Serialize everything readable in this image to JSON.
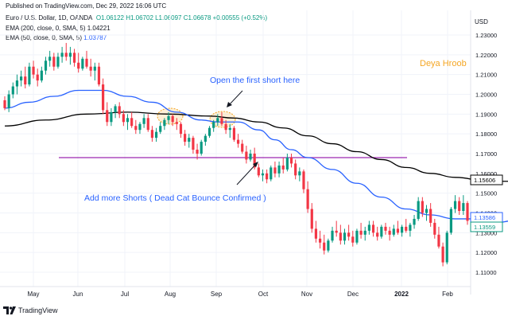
{
  "header": {
    "published": "Published on TradingView.com, Dec 29, 2022 16:06 UTC",
    "symbol": "Euro / U.S. Dollar, 1D, OANDA",
    "ohlc": "O1.06122 H1.06702 L1.06097 C1.06678 +0.00555 (+0.52%)",
    "ema200_label": "EMA (200, close, 0, SMA, 5)",
    "ema200_value": "1.04221",
    "ema50_label": "EMA (50, close, 0, SMA, 5)",
    "ema50_value": "1.03787"
  },
  "author": "Deya Hroob",
  "annotations": {
    "short_text": "Open the first short here",
    "more_text": "Add more Shorts ( Dead Cat Bounce Confirmed )"
  },
  "footer": {
    "brand": "TradingView"
  },
  "colors": {
    "up": "#089981",
    "down": "#f23645",
    "ema50": "#2962ff",
    "ema200": "#000000",
    "hline": "#9c27b0",
    "highlight": "#f5a623",
    "annot": "#2962ff"
  },
  "chart_data": {
    "type": "candlestick",
    "currency": "USD",
    "x_axis": {
      "tick_labels": [
        "May",
        "Jun",
        "Jul",
        "Aug",
        "Sep",
        "Oct",
        "Nov",
        "Dec",
        "2022",
        "Feb"
      ]
    },
    "y_axis": {
      "tick_labels": [
        "1.11000",
        "1.12000",
        "1.13000",
        "1.14000",
        "1.15000",
        "1.16000",
        "1.17000",
        "1.18000",
        "1.19000",
        "1.20000",
        "1.21000",
        "1.22000",
        "1.23000"
      ],
      "range": [
        1.102,
        1.238
      ]
    },
    "price_labels": [
      {
        "value": 1.15606,
        "label": "1.15606",
        "color": "#000000"
      },
      {
        "value": 1.13586,
        "label": "1.13586",
        "color": "#2962ff"
      },
      {
        "value": 1.13559,
        "label": "1.13559",
        "color": "#089981"
      }
    ],
    "resistance_line": {
      "value": 1.168
    },
    "ohlc": [
      [
        1.197,
        1.199,
        1.192,
        1.193
      ],
      [
        1.193,
        1.202,
        1.191,
        1.2
      ],
      [
        1.2,
        1.206,
        1.198,
        1.204
      ],
      [
        1.204,
        1.21,
        1.2,
        1.207
      ],
      [
        1.207,
        1.212,
        1.204,
        1.209
      ],
      [
        1.209,
        1.214,
        1.203,
        1.205
      ],
      [
        1.205,
        1.216,
        1.204,
        1.214
      ],
      [
        1.214,
        1.217,
        1.208,
        1.21
      ],
      [
        1.21,
        1.213,
        1.204,
        1.207
      ],
      [
        1.207,
        1.214,
        1.206,
        1.212
      ],
      [
        1.212,
        1.219,
        1.21,
        1.217
      ],
      [
        1.217,
        1.222,
        1.214,
        1.219
      ],
      [
        1.219,
        1.221,
        1.212,
        1.214
      ],
      [
        1.214,
        1.221,
        1.213,
        1.219
      ],
      [
        1.219,
        1.224,
        1.216,
        1.221
      ],
      [
        1.221,
        1.226,
        1.217,
        1.219
      ],
      [
        1.219,
        1.224,
        1.215,
        1.221
      ],
      [
        1.221,
        1.223,
        1.214,
        1.216
      ],
      [
        1.216,
        1.221,
        1.211,
        1.213
      ],
      [
        1.213,
        1.219,
        1.212,
        1.218
      ],
      [
        1.218,
        1.222,
        1.213,
        1.214
      ],
      [
        1.214,
        1.218,
        1.209,
        1.212
      ],
      [
        1.212,
        1.216,
        1.207,
        1.214
      ],
      [
        1.214,
        1.216,
        1.204,
        1.205
      ],
      [
        1.205,
        1.208,
        1.19,
        1.192
      ],
      [
        1.192,
        1.196,
        1.184,
        1.186
      ],
      [
        1.186,
        1.193,
        1.184,
        1.191
      ],
      [
        1.191,
        1.195,
        1.188,
        1.194
      ],
      [
        1.194,
        1.196,
        1.188,
        1.19
      ],
      [
        1.19,
        1.192,
        1.184,
        1.186
      ],
      [
        1.186,
        1.19,
        1.182,
        1.188
      ],
      [
        1.188,
        1.191,
        1.183,
        1.184
      ],
      [
        1.184,
        1.187,
        1.18,
        1.182
      ],
      [
        1.182,
        1.186,
        1.18,
        1.185
      ],
      [
        1.185,
        1.19,
        1.183,
        1.188
      ],
      [
        1.188,
        1.19,
        1.181,
        1.182
      ],
      [
        1.182,
        1.184,
        1.176,
        1.178
      ],
      [
        1.178,
        1.183,
        1.176,
        1.181
      ],
      [
        1.181,
        1.186,
        1.18,
        1.184
      ],
      [
        1.184,
        1.188,
        1.182,
        1.187
      ],
      [
        1.187,
        1.191,
        1.185,
        1.189
      ],
      [
        1.189,
        1.19,
        1.184,
        1.186
      ],
      [
        1.186,
        1.188,
        1.182,
        1.185
      ],
      [
        1.185,
        1.186,
        1.178,
        1.18
      ],
      [
        1.18,
        1.182,
        1.174,
        1.176
      ],
      [
        1.176,
        1.18,
        1.173,
        1.178
      ],
      [
        1.178,
        1.179,
        1.17,
        1.172
      ],
      [
        1.172,
        1.175,
        1.167,
        1.17
      ],
      [
        1.17,
        1.177,
        1.169,
        1.176
      ],
      [
        1.176,
        1.18,
        1.174,
        1.179
      ],
      [
        1.179,
        1.184,
        1.178,
        1.183
      ],
      [
        1.183,
        1.187,
        1.181,
        1.186
      ],
      [
        1.186,
        1.19,
        1.184,
        1.188
      ],
      [
        1.188,
        1.191,
        1.184,
        1.185
      ],
      [
        1.185,
        1.187,
        1.18,
        1.182
      ],
      [
        1.182,
        1.185,
        1.178,
        1.183
      ],
      [
        1.183,
        1.184,
        1.176,
        1.177
      ],
      [
        1.177,
        1.18,
        1.173,
        1.175
      ],
      [
        1.175,
        1.177,
        1.17,
        1.171
      ],
      [
        1.171,
        1.174,
        1.165,
        1.167
      ],
      [
        1.167,
        1.172,
        1.166,
        1.17
      ],
      [
        1.17,
        1.173,
        1.162,
        1.163
      ],
      [
        1.163,
        1.165,
        1.158,
        1.159
      ],
      [
        1.159,
        1.162,
        1.156,
        1.16
      ],
      [
        1.16,
        1.162,
        1.155,
        1.157
      ],
      [
        1.157,
        1.164,
        1.156,
        1.163
      ],
      [
        1.163,
        1.166,
        1.158,
        1.16
      ],
      [
        1.16,
        1.166,
        1.158,
        1.164
      ],
      [
        1.164,
        1.168,
        1.16,
        1.162
      ],
      [
        1.162,
        1.17,
        1.161,
        1.168
      ],
      [
        1.168,
        1.17,
        1.163,
        1.165
      ],
      [
        1.165,
        1.167,
        1.157,
        1.159
      ],
      [
        1.159,
        1.163,
        1.156,
        1.161
      ],
      [
        1.161,
        1.162,
        1.15,
        1.152
      ],
      [
        1.152,
        1.156,
        1.14,
        1.142
      ],
      [
        1.142,
        1.145,
        1.13,
        1.132
      ],
      [
        1.132,
        1.136,
        1.125,
        1.127
      ],
      [
        1.127,
        1.131,
        1.122,
        1.125
      ],
      [
        1.125,
        1.129,
        1.119,
        1.121
      ],
      [
        1.121,
        1.127,
        1.12,
        1.126
      ],
      [
        1.126,
        1.133,
        1.125,
        1.131
      ],
      [
        1.131,
        1.136,
        1.128,
        1.13
      ],
      [
        1.13,
        1.134,
        1.124,
        1.126
      ],
      [
        1.126,
        1.132,
        1.124,
        1.13
      ],
      [
        1.13,
        1.134,
        1.126,
        1.128
      ],
      [
        1.128,
        1.131,
        1.123,
        1.125
      ],
      [
        1.125,
        1.132,
        1.124,
        1.131
      ],
      [
        1.131,
        1.135,
        1.127,
        1.129
      ],
      [
        1.129,
        1.133,
        1.126,
        1.131
      ],
      [
        1.131,
        1.136,
        1.129,
        1.134
      ],
      [
        1.134,
        1.136,
        1.128,
        1.13
      ],
      [
        1.13,
        1.133,
        1.126,
        1.128
      ],
      [
        1.128,
        1.134,
        1.127,
        1.133
      ],
      [
        1.133,
        1.135,
        1.129,
        1.131
      ],
      [
        1.131,
        1.133,
        1.126,
        1.129
      ],
      [
        1.129,
        1.134,
        1.128,
        1.132
      ],
      [
        1.132,
        1.136,
        1.129,
        1.13
      ],
      [
        1.13,
        1.134,
        1.128,
        1.133
      ],
      [
        1.133,
        1.137,
        1.13,
        1.131
      ],
      [
        1.131,
        1.135,
        1.128,
        1.134
      ],
      [
        1.134,
        1.139,
        1.132,
        1.137
      ],
      [
        1.137,
        1.148,
        1.136,
        1.146
      ],
      [
        1.146,
        1.148,
        1.138,
        1.14
      ],
      [
        1.14,
        1.144,
        1.136,
        1.142
      ],
      [
        1.142,
        1.145,
        1.133,
        1.135
      ],
      [
        1.135,
        1.137,
        1.127,
        1.129
      ],
      [
        1.129,
        1.133,
        1.122,
        1.123
      ],
      [
        1.123,
        1.125,
        1.113,
        1.115
      ],
      [
        1.115,
        1.131,
        1.114,
        1.13
      ],
      [
        1.13,
        1.143,
        1.129,
        1.142
      ],
      [
        1.142,
        1.149,
        1.14,
        1.146
      ],
      [
        1.146,
        1.148,
        1.139,
        1.141
      ],
      [
        1.141,
        1.149,
        1.139,
        1.145
      ],
      [
        1.145,
        1.146,
        1.134,
        1.136
      ]
    ],
    "ema50": [
      [
        0,
        1.193
      ],
      [
        6,
        1.196
      ],
      [
        12,
        1.199
      ],
      [
        18,
        1.202
      ],
      [
        24,
        1.202
      ],
      [
        30,
        1.199
      ],
      [
        36,
        1.196
      ],
      [
        42,
        1.191
      ],
      [
        48,
        1.187
      ],
      [
        52,
        1.186
      ],
      [
        57,
        1.186
      ],
      [
        62,
        1.182
      ],
      [
        66,
        1.177
      ],
      [
        70,
        1.172
      ],
      [
        74,
        1.168
      ],
      [
        80,
        1.162
      ],
      [
        86,
        1.155
      ],
      [
        92,
        1.148
      ],
      [
        98,
        1.142
      ],
      [
        104,
        1.139
      ],
      [
        110,
        1.137
      ],
      [
        116,
        1.137
      ],
      [
        120,
        1.135
      ],
      [
        124,
        1.136
      ]
    ],
    "ema200": [
      [
        0,
        1.184
      ],
      [
        10,
        1.187
      ],
      [
        20,
        1.19
      ],
      [
        30,
        1.191
      ],
      [
        40,
        1.19
      ],
      [
        50,
        1.189
      ],
      [
        56,
        1.188
      ],
      [
        62,
        1.186
      ],
      [
        68,
        1.183
      ],
      [
        74,
        1.179
      ],
      [
        80,
        1.175
      ],
      [
        86,
        1.171
      ],
      [
        92,
        1.167
      ],
      [
        98,
        1.163
      ],
      [
        104,
        1.16
      ],
      [
        110,
        1.158
      ],
      [
        118,
        1.156
      ],
      [
        124,
        1.156
      ]
    ]
  }
}
